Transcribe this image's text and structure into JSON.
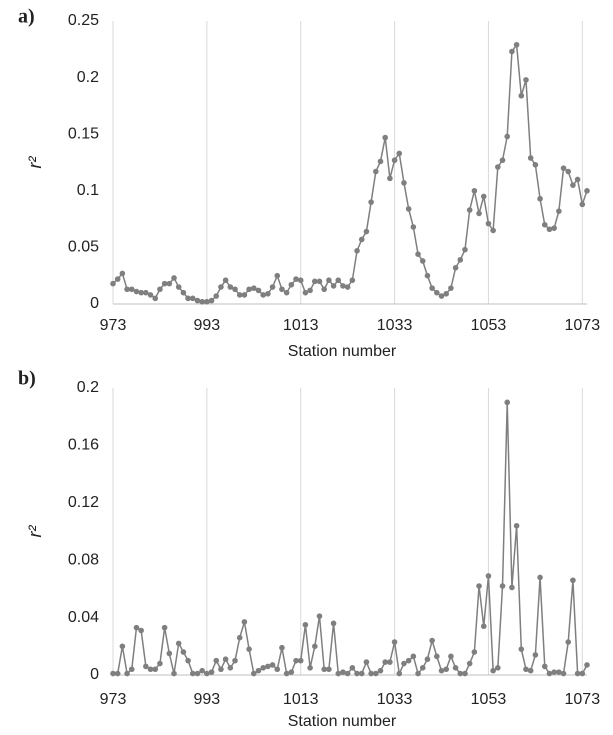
{
  "chart_data": [
    {
      "type": "line",
      "panel_label": "a)",
      "xlabel": "Station number",
      "ylabel": "r²",
      "color": "#7f7f7f",
      "grid": true,
      "markers": true,
      "xlim": [
        973,
        1074
      ],
      "xticks": [
        973,
        993,
        1013,
        1033,
        1053,
        1073
      ],
      "ylim": [
        0,
        0.25
      ],
      "yticks": [
        0,
        0.05,
        0.1,
        0.15,
        0.2,
        0.25
      ],
      "x": [
        973,
        974,
        975,
        976,
        977,
        978,
        979,
        980,
        981,
        982,
        983,
        984,
        985,
        986,
        987,
        988,
        989,
        990,
        991,
        992,
        993,
        994,
        995,
        996,
        997,
        998,
        999,
        1000,
        1001,
        1002,
        1003,
        1004,
        1005,
        1006,
        1007,
        1008,
        1009,
        1010,
        1011,
        1012,
        1013,
        1014,
        1015,
        1016,
        1017,
        1018,
        1019,
        1020,
        1021,
        1022,
        1023,
        1024,
        1025,
        1026,
        1027,
        1028,
        1029,
        1030,
        1031,
        1032,
        1033,
        1034,
        1035,
        1036,
        1037,
        1038,
        1039,
        1040,
        1041,
        1042,
        1043,
        1044,
        1045,
        1046,
        1047,
        1048,
        1049,
        1050,
        1051,
        1052,
        1053,
        1054,
        1055,
        1056,
        1057,
        1058,
        1059,
        1060,
        1061,
        1062,
        1063,
        1064,
        1065,
        1066,
        1067,
        1068,
        1069,
        1070,
        1071,
        1072,
        1073,
        1074
      ],
      "values": [
        0.018,
        0.022,
        0.027,
        0.013,
        0.013,
        0.011,
        0.01,
        0.01,
        0.008,
        0.005,
        0.013,
        0.018,
        0.018,
        0.023,
        0.015,
        0.01,
        0.005,
        0.005,
        0.003,
        0.002,
        0.002,
        0.003,
        0.007,
        0.015,
        0.021,
        0.015,
        0.013,
        0.008,
        0.008,
        0.013,
        0.014,
        0.012,
        0.008,
        0.009,
        0.015,
        0.025,
        0.013,
        0.01,
        0.017,
        0.022,
        0.021,
        0.01,
        0.012,
        0.02,
        0.02,
        0.013,
        0.021,
        0.016,
        0.021,
        0.016,
        0.015,
        0.021,
        0.047,
        0.057,
        0.064,
        0.09,
        0.117,
        0.126,
        0.147,
        0.111,
        0.127,
        0.133,
        0.107,
        0.084,
        0.068,
        0.044,
        0.038,
        0.025,
        0.014,
        0.01,
        0.007,
        0.009,
        0.014,
        0.032,
        0.039,
        0.048,
        0.083,
        0.1,
        0.08,
        0.095,
        0.071,
        0.065,
        0.121,
        0.127,
        0.148,
        0.223,
        0.229,
        0.184,
        0.198,
        0.129,
        0.123,
        0.093,
        0.07,
        0.066,
        0.067,
        0.082,
        0.12,
        0.117,
        0.105,
        0.11,
        0.088,
        0.1
      ]
    },
    {
      "type": "line",
      "panel_label": "b)",
      "xlabel": "Station number",
      "ylabel": "r²",
      "color": "#7f7f7f",
      "grid": true,
      "markers": true,
      "xlim": [
        973,
        1074
      ],
      "xticks": [
        973,
        993,
        1013,
        1033,
        1053,
        1073
      ],
      "ylim": [
        0,
        0.2
      ],
      "yticks": [
        0,
        0.04,
        0.08,
        0.12,
        0.16,
        0.2
      ],
      "x": [
        973,
        974,
        975,
        976,
        977,
        978,
        979,
        980,
        981,
        982,
        983,
        984,
        985,
        986,
        987,
        988,
        989,
        990,
        991,
        992,
        993,
        994,
        995,
        996,
        997,
        998,
        999,
        1000,
        1001,
        1002,
        1003,
        1004,
        1005,
        1006,
        1007,
        1008,
        1009,
        1010,
        1011,
        1012,
        1013,
        1014,
        1015,
        1016,
        1017,
        1018,
        1019,
        1020,
        1021,
        1022,
        1023,
        1024,
        1025,
        1026,
        1027,
        1028,
        1029,
        1030,
        1031,
        1032,
        1033,
        1034,
        1035,
        1036,
        1037,
        1038,
        1039,
        1040,
        1041,
        1042,
        1043,
        1044,
        1045,
        1046,
        1047,
        1048,
        1049,
        1050,
        1051,
        1052,
        1053,
        1054,
        1055,
        1056,
        1057,
        1058,
        1059,
        1060,
        1061,
        1062,
        1063,
        1064,
        1065,
        1066,
        1067,
        1068,
        1069,
        1070,
        1071,
        1072,
        1073,
        1074
      ],
      "values": [
        0.001,
        0.001,
        0.02,
        0.001,
        0.004,
        0.033,
        0.031,
        0.006,
        0.004,
        0.004,
        0.008,
        0.033,
        0.015,
        0.001,
        0.022,
        0.016,
        0.01,
        0.001,
        0.001,
        0.003,
        0.001,
        0.002,
        0.01,
        0.004,
        0.011,
        0.005,
        0.01,
        0.026,
        0.037,
        0.018,
        0.001,
        0.003,
        0.005,
        0.006,
        0.007,
        0.004,
        0.019,
        0.001,
        0.002,
        0.01,
        0.01,
        0.035,
        0.005,
        0.02,
        0.041,
        0.004,
        0.004,
        0.036,
        0.001,
        0.002,
        0.001,
        0.005,
        0.001,
        0.001,
        0.009,
        0.001,
        0.001,
        0.003,
        0.009,
        0.009,
        0.023,
        0.001,
        0.008,
        0.01,
        0.013,
        0.001,
        0.005,
        0.011,
        0.024,
        0.013,
        0.003,
        0.004,
        0.013,
        0.005,
        0.001,
        0.001,
        0.008,
        0.016,
        0.062,
        0.034,
        0.069,
        0.003,
        0.005,
        0.062,
        0.19,
        0.061,
        0.104,
        0.018,
        0.004,
        0.003,
        0.014,
        0.068,
        0.006,
        0.001,
        0.002,
        0.002,
        0.001,
        0.023,
        0.066,
        0.001,
        0.001,
        0.007
      ]
    }
  ]
}
